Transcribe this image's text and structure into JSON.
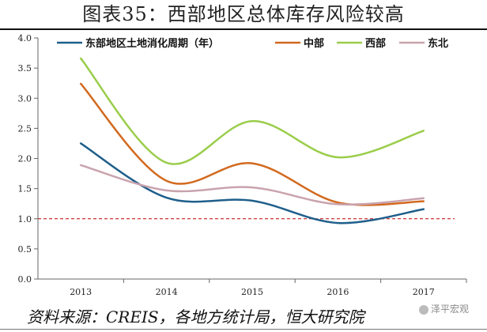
{
  "title": "图表35：西部地区总体库存风险较高",
  "source": "资料来源：CREIS，各地方统计局，恒大研究院",
  "watermark": "泽平宏观",
  "chart_data": {
    "type": "line",
    "x": [
      "2013",
      "2014",
      "2015",
      "2016",
      "2017"
    ],
    "ylim": [
      0,
      4.0
    ],
    "yticks": [
      "0.0",
      "0.5",
      "1.0",
      "1.5",
      "2.0",
      "2.5",
      "3.0",
      "3.5",
      "4.0"
    ],
    "reference_line": {
      "y": 1.0,
      "color": "#c00000",
      "style": "dashed"
    },
    "legend_position": "top",
    "series": [
      {
        "name": "东部地区土地消化周期（年）",
        "color": "#1f5f8b",
        "values": [
          2.25,
          1.35,
          1.3,
          0.93,
          1.16
        ]
      },
      {
        "name": "中部",
        "color": "#d2691e",
        "values": [
          3.24,
          1.63,
          1.92,
          1.27,
          1.29
        ]
      },
      {
        "name": "西部",
        "color": "#9acd4a",
        "values": [
          3.66,
          1.93,
          2.62,
          2.02,
          2.46
        ]
      },
      {
        "name": "东北",
        "color": "#c9a3ad",
        "values": [
          1.89,
          1.47,
          1.52,
          1.24,
          1.34
        ]
      }
    ]
  }
}
